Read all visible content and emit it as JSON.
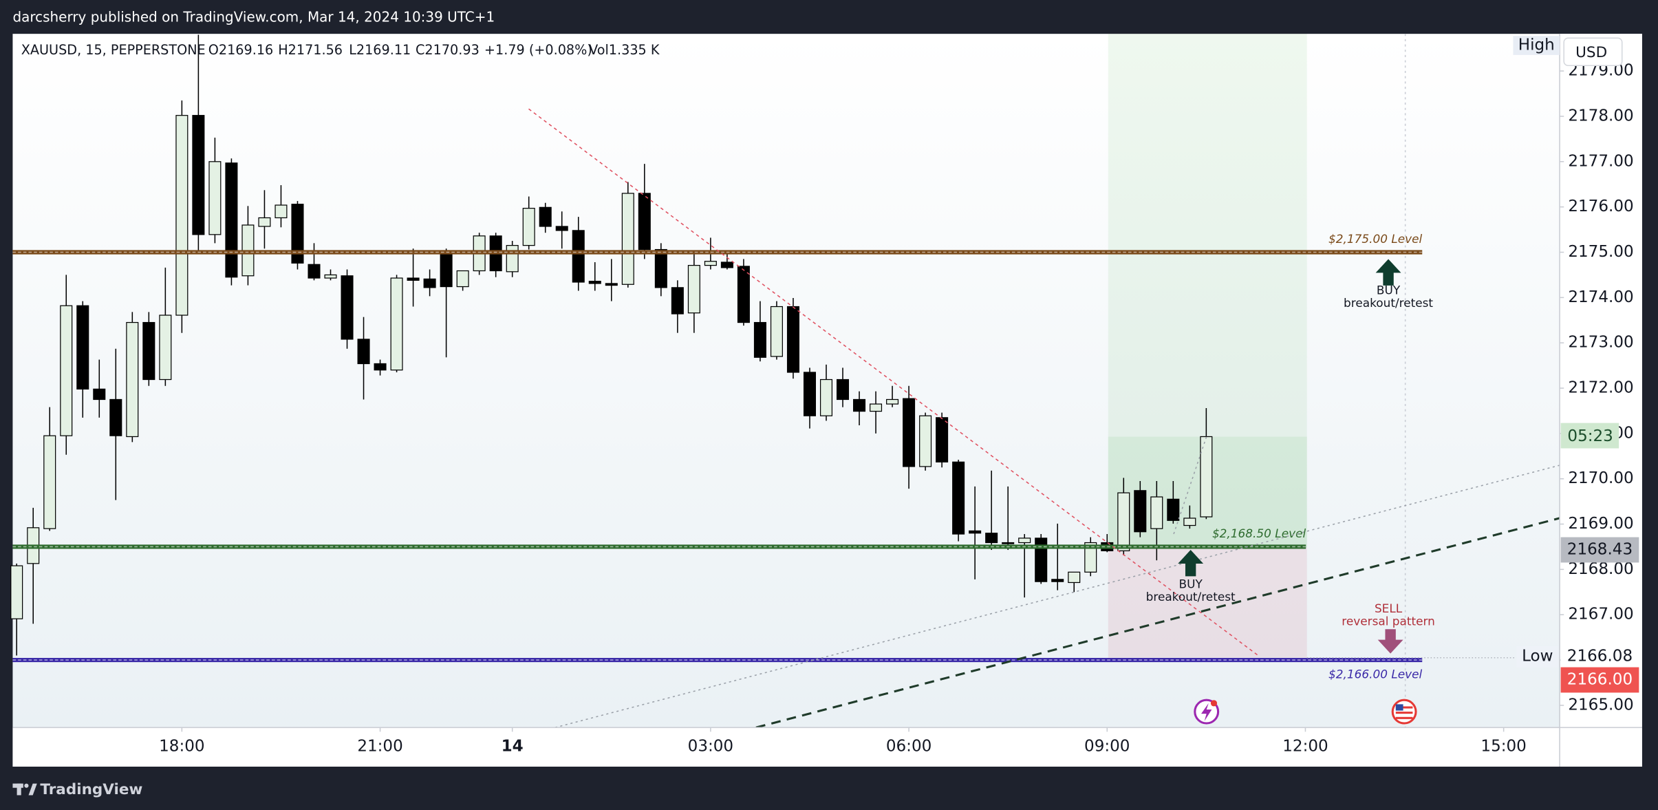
{
  "publisher": "darcsherry published on TradingView.com, Mar 14, 2024 10:39 UTC+1",
  "footer": "TradingView",
  "header": {
    "symbol": "XAUUSD, 15, PEPPERSTONE",
    "open": "O2169.16",
    "high": "H2171.56",
    "low": "L2169.11",
    "close": "C2170.93",
    "change": "+1.79 (+0.08%)",
    "volume": "Vol1.335 K"
  },
  "chart_data": {
    "type": "candlestick",
    "categories": [
      "15:30",
      "15:45",
      "16:00",
      "16:15",
      "16:30",
      "16:45",
      "17:00",
      "17:15",
      "17:30",
      "17:45",
      "18:00",
      "18:15",
      "18:30",
      "18:45",
      "19:00",
      "19:15",
      "19:30",
      "19:45",
      "20:00",
      "20:15",
      "20:30",
      "20:45",
      "21:00",
      "21:15",
      "21:30",
      "21:45",
      "22:00",
      "22:15",
      "22:30",
      "22:45",
      "00:00",
      "00:15",
      "00:30",
      "00:45",
      "01:00",
      "01:15",
      "01:30",
      "01:45",
      "02:00",
      "02:15",
      "02:30",
      "02:45",
      "03:00",
      "03:15",
      "03:30",
      "03:45",
      "04:00",
      "04:15",
      "04:30",
      "04:45",
      "05:00",
      "05:15",
      "05:30",
      "05:45",
      "06:00",
      "06:15",
      "06:30",
      "06:45",
      "07:00",
      "07:15",
      "07:30",
      "07:45",
      "08:00",
      "08:15",
      "08:30",
      "08:45",
      "09:00",
      "09:15",
      "09:30",
      "09:45",
      "10:00",
      "10:15",
      "10:30"
    ],
    "open": [
      2166.91,
      2168.13,
      2168.9,
      2170.95,
      2173.82,
      2171.98,
      2171.75,
      2170.93,
      2173.45,
      2172.19,
      2173.61,
      2178.02,
      2175.39,
      2176.97,
      2174.48,
      2175.57,
      2175.76,
      2176.06,
      2174.73,
      2174.43,
      2174.48,
      2173.08,
      2172.54,
      2172.4,
      2174.43,
      2174.41,
      2174.97,
      2174.24,
      2174.59,
      2175.36,
      2174.57,
      2175.15,
      2175.99,
      2175.57,
      2175.48,
      2174.36,
      2174.31,
      2174.29,
      2176.3,
      2175.06,
      2174.22,
      2173.66,
      2174.71,
      2174.78,
      2174.69,
      2173.45,
      2172.7,
      2173.8,
      2172.35,
      2171.39,
      2172.19,
      2171.75,
      2171.49,
      2171.65,
      2171.77,
      2170.27,
      2171.35,
      2170.37,
      2168.85,
      2168.8,
      2168.59,
      2168.59,
      2168.69,
      2167.78,
      2167.71,
      2167.94,
      2168.59,
      2168.41,
      2169.74,
      2168.9,
      2169.55,
      2168.97,
      2169.16
    ],
    "high": [
      2168.13,
      2169.36,
      2171.58,
      2174.5,
      2173.92,
      2172.63,
      2172.87,
      2173.68,
      2173.68,
      2174.66,
      2178.35,
      2179.8,
      2177.53,
      2177.07,
      2176.02,
      2176.37,
      2176.48,
      2176.13,
      2175.2,
      2174.62,
      2174.62,
      2173.57,
      2172.63,
      2174.5,
      2175.08,
      2174.62,
      2175.08,
      2174.5,
      2175.43,
      2175.43,
      2175.25,
      2176.23,
      2176.09,
      2175.9,
      2175.78,
      2174.78,
      2174.85,
      2176.55,
      2176.95,
      2175.2,
      2174.38,
      2174.97,
      2175.32,
      2174.97,
      2174.85,
      2173.92,
      2173.92,
      2173.99,
      2172.45,
      2172.52,
      2172.45,
      2171.93,
      2171.93,
      2172.05,
      2172.05,
      2171.46,
      2171.46,
      2170.42,
      2169.83,
      2170.18,
      2169.83,
      2168.78,
      2168.78,
      2169.01,
      2167.94,
      2168.71,
      2168.78,
      2170.02,
      2169.95,
      2169.95,
      2169.95,
      2169.41,
      2171.56
    ],
    "low": [
      2166.1,
      2166.8,
      2168.85,
      2170.53,
      2171.35,
      2171.35,
      2169.53,
      2170.81,
      2172.05,
      2172.05,
      2173.22,
      2174.97,
      2175.2,
      2174.27,
      2174.27,
      2175.08,
      2175.55,
      2174.62,
      2174.38,
      2174.38,
      2172.87,
      2171.75,
      2172.28,
      2172.35,
      2173.8,
      2174.03,
      2172.68,
      2174.15,
      2174.5,
      2174.45,
      2174.45,
      2175.06,
      2175.43,
      2175.08,
      2174.15,
      2174.15,
      2173.92,
      2174.22,
      2174.85,
      2174.03,
      2173.22,
      2173.22,
      2174.62,
      2174.62,
      2173.38,
      2172.59,
      2172.63,
      2172.21,
      2171.11,
      2171.28,
      2171.58,
      2171.18,
      2171.0,
      2171.58,
      2169.78,
      2170.18,
      2170.25,
      2168.62,
      2167.78,
      2168.43,
      2168.43,
      2167.38,
      2167.68,
      2167.54,
      2167.5,
      2167.85,
      2168.38,
      2168.31,
      2168.71,
      2168.2,
      2169.01,
      2168.9,
      2169.11
    ],
    "close": [
      2168.08,
      2168.92,
      2170.95,
      2173.82,
      2171.98,
      2171.75,
      2170.95,
      2173.45,
      2172.19,
      2173.61,
      2178.02,
      2175.39,
      2177.0,
      2174.45,
      2175.6,
      2175.76,
      2176.04,
      2174.76,
      2174.43,
      2174.5,
      2173.08,
      2172.54,
      2172.4,
      2174.43,
      2174.38,
      2174.22,
      2174.24,
      2174.59,
      2175.36,
      2174.59,
      2175.15,
      2175.97,
      2175.57,
      2175.48,
      2174.34,
      2174.31,
      2174.27,
      2176.3,
      2175.06,
      2174.22,
      2173.64,
      2174.71,
      2174.8,
      2174.66,
      2173.45,
      2172.68,
      2173.8,
      2172.35,
      2171.39,
      2172.19,
      2171.75,
      2171.49,
      2171.65,
      2171.75,
      2170.27,
      2171.39,
      2170.37,
      2168.78,
      2168.8,
      2168.59,
      2168.57,
      2168.69,
      2167.73,
      2167.73,
      2167.94,
      2168.59,
      2168.41,
      2169.69,
      2168.83,
      2169.6,
      2169.08,
      2169.13,
      2170.93
    ],
    "up_color": "#e4f1e4",
    "down_color": "#000000",
    "ylim": [
      2164.51,
      2179.82
    ],
    "yticks": [
      {
        "value": 2165,
        "label": "2165.00"
      },
      {
        "value": 2166,
        "label": "2166.00"
      },
      {
        "value": 2167,
        "label": "2167.00"
      },
      {
        "value": 2168,
        "label": "2168.00"
      },
      {
        "value": 2169,
        "label": "2169.00"
      },
      {
        "value": 2170,
        "label": "2170.00"
      },
      {
        "value": 2171,
        "label": "2171.00"
      },
      {
        "value": 2172,
        "label": "2172.00"
      },
      {
        "value": 2173,
        "label": "2173.00"
      },
      {
        "value": 2174,
        "label": "2174.00"
      },
      {
        "value": 2175,
        "label": "2175.00"
      },
      {
        "value": 2176,
        "label": "2176.00"
      },
      {
        "value": 2177,
        "label": "2177.00"
      },
      {
        "value": 2178,
        "label": "2178.00"
      },
      {
        "value": 2179,
        "label": "2179.00"
      }
    ],
    "xlim": [
      -0.24,
      93.39
    ],
    "xticks": [
      {
        "value": 10,
        "label": "18:00"
      },
      {
        "value": 22,
        "label": "21:00"
      },
      {
        "value": 30,
        "label": "14"
      },
      {
        "value": 42,
        "label": "03:00"
      },
      {
        "value": 54,
        "label": "06:00"
      },
      {
        "value": 66,
        "label": "09:00"
      },
      {
        "value": 78,
        "label": "12:00"
      },
      {
        "value": 90,
        "label": "15:00"
      }
    ],
    "levels": [
      {
        "value": 2175,
        "label": "$2,175.00 Level",
        "color": "#7a4a1a"
      },
      {
        "value": 2168.5,
        "label": "$2,168.50 Level",
        "color": "#2e6b2e"
      },
      {
        "value": 2166,
        "label": "$2,166.00 Level",
        "color": "#3b2aa8"
      }
    ],
    "annotations": [
      {
        "title": "BUY",
        "text": "breakout/retest"
      },
      {
        "title": "BUY",
        "text": "breakout/retest"
      },
      {
        "title": "SELL",
        "text": "reversal pattern"
      }
    ],
    "price_labels": {
      "currency": "USD",
      "high": "High",
      "low": "Low",
      "low_price": "2166.08",
      "countdown": "05:23",
      "crosshair": "2168.43",
      "level_price": "2166.00"
    }
  }
}
